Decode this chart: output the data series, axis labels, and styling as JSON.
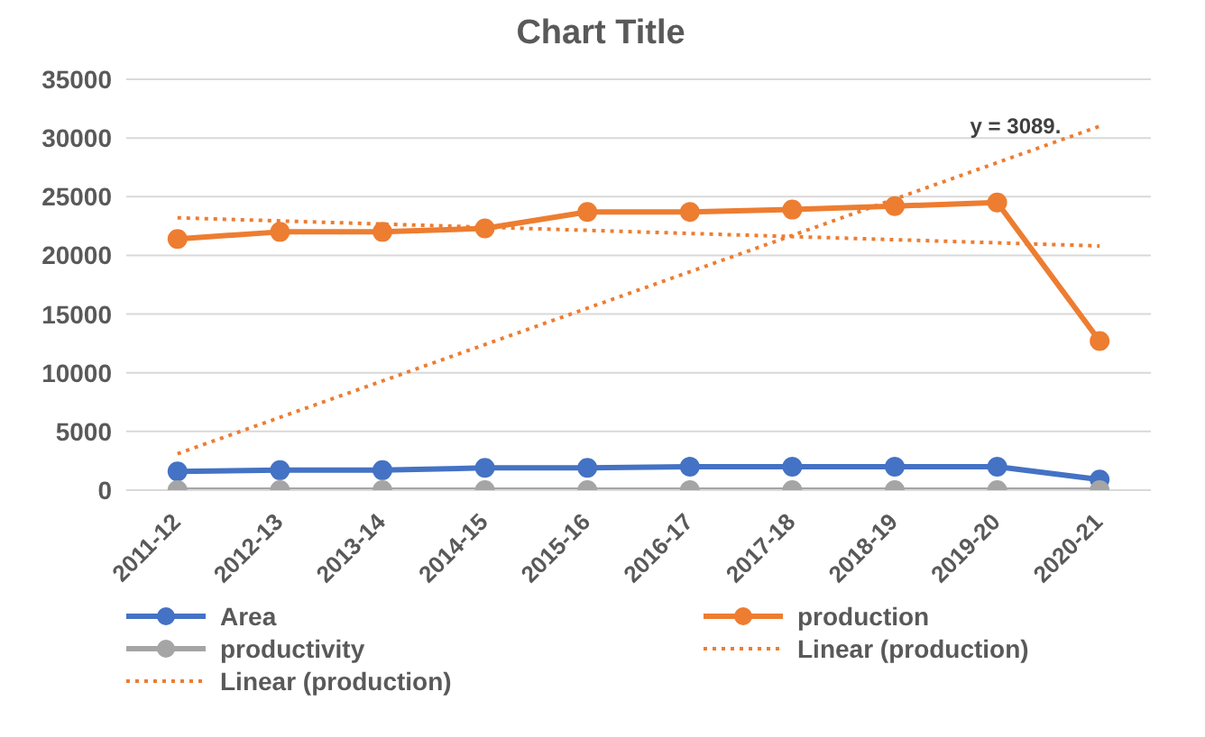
{
  "chart_data": {
    "type": "line",
    "title": "Chart Title",
    "categories": [
      "2011-12",
      "2012-13",
      "2013-14",
      "2014-15",
      "2015-16",
      "2016-17",
      "2017-18",
      "2018-19",
      "2019-20",
      "2020-21"
    ],
    "series": [
      {
        "name": "Area",
        "color": "#4472c4",
        "values": [
          1600,
          1700,
          1700,
          1900,
          1900,
          2000,
          2000,
          2000,
          2000,
          900
        ]
      },
      {
        "name": "production",
        "color": "#ed7d31",
        "values": [
          21400,
          22000,
          22000,
          22300,
          23700,
          23700,
          23900,
          24200,
          24500,
          12700
        ]
      },
      {
        "name": "productivity",
        "color": "#a5a5a5",
        "values": [
          0,
          0,
          0,
          0,
          0,
          0,
          0,
          0,
          0,
          0
        ]
      },
      {
        "name": "Linear (production)",
        "color": "#ed7d31",
        "line_style": "dotted",
        "marker": "none",
        "values": [
          23200,
          null,
          null,
          null,
          null,
          null,
          null,
          null,
          null,
          20800
        ]
      },
      {
        "name": "Linear (production)",
        "color": "#ed7d31",
        "line_style": "dotted",
        "marker": "none",
        "values": [
          3100,
          null,
          null,
          null,
          null,
          null,
          null,
          null,
          null,
          31000
        ]
      }
    ],
    "ylim": [
      0,
      35000
    ],
    "yticks": [
      0,
      5000,
      10000,
      15000,
      20000,
      25000,
      30000,
      35000
    ],
    "grid": "y",
    "legend": "bottom",
    "marker": "circle",
    "line_style": "solid",
    "annotations": [
      "y = 3089."
    ]
  }
}
